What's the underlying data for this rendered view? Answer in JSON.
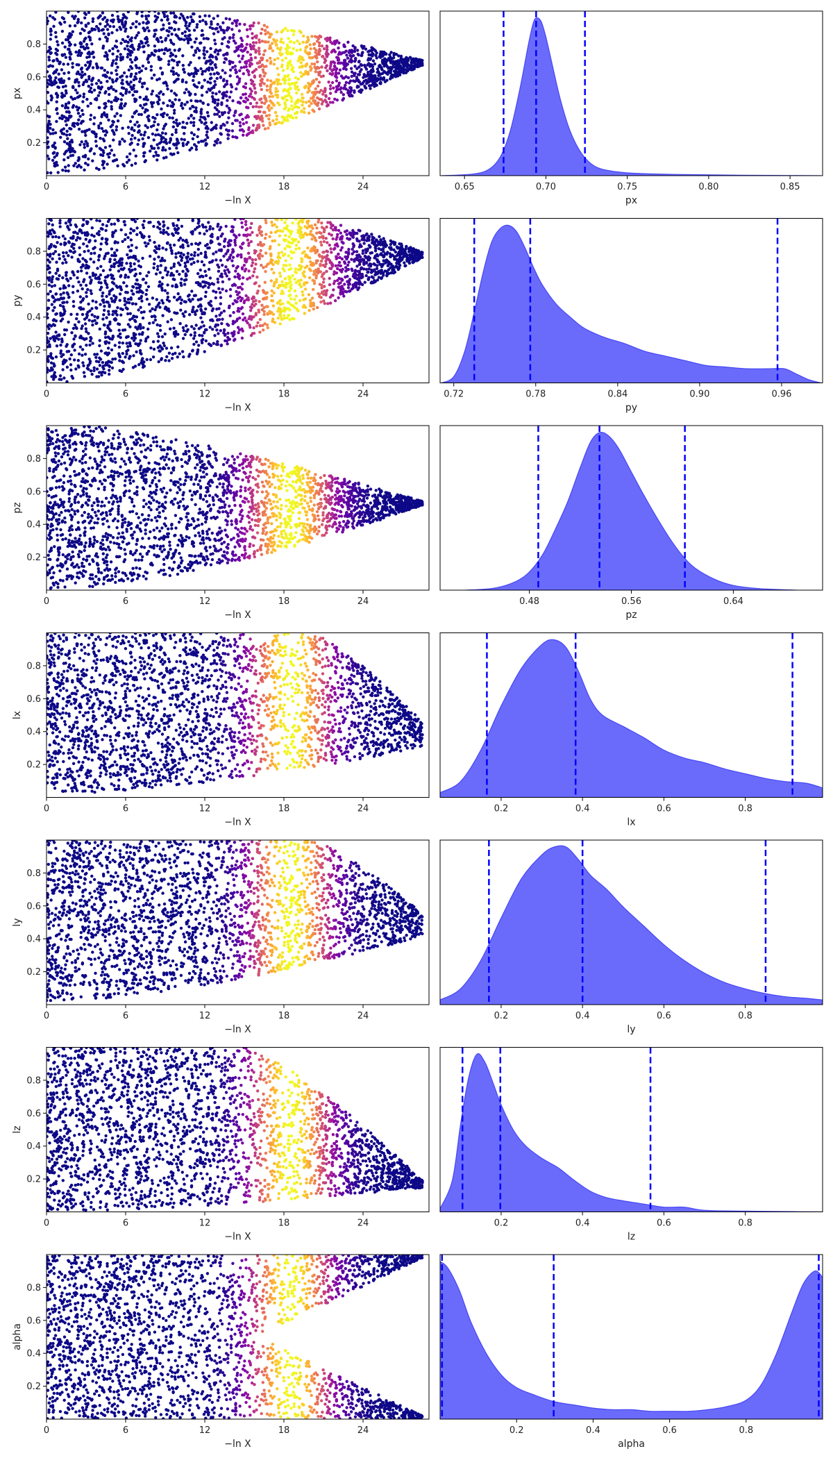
{
  "chart_data": [
    {
      "type": "scatter",
      "param": "px",
      "xlabel": "−ln X",
      "ylabel": "px",
      "xticks": [
        0,
        6,
        12,
        18,
        24
      ],
      "yticks": [
        0.2,
        0.4,
        0.6,
        0.8
      ],
      "xlim": [
        0,
        29
      ],
      "ylim": [
        0,
        1
      ],
      "funnel": {
        "lo_min": 0.0,
        "hi_max": 1.0,
        "converge_to": 0.69,
        "converge_lnx": 29,
        "lo_rise_lnx": 4,
        "hi_start_lnx": 10,
        "end_lnx": 28.5
      },
      "colormap_peak_lnx": 18.5,
      "colormap_width": 3.0
    },
    {
      "type": "area",
      "param": "px",
      "xlabel": "px",
      "xticks": [
        0.65,
        0.7,
        0.75,
        0.8,
        0.85
      ],
      "xtick_labels": [
        "0.65",
        "0.70",
        "0.75",
        "0.80",
        "0.85"
      ],
      "xlim": [
        0.635,
        0.87
      ],
      "quantiles": [
        0.674,
        0.694,
        0.724
      ],
      "density": {
        "x": [
          0.636,
          0.655,
          0.665,
          0.672,
          0.678,
          0.684,
          0.689,
          0.692,
          0.694,
          0.697,
          0.7,
          0.704,
          0.709,
          0.715,
          0.722,
          0.73,
          0.74,
          0.755,
          0.78,
          0.82,
          0.869
        ],
        "y": [
          0.0,
          0.01,
          0.04,
          0.12,
          0.28,
          0.55,
          0.82,
          0.96,
          1.0,
          0.98,
          0.88,
          0.7,
          0.48,
          0.28,
          0.14,
          0.06,
          0.03,
          0.015,
          0.008,
          0.003,
          0.0
        ]
      }
    },
    {
      "type": "scatter",
      "param": "py",
      "xlabel": "−ln X",
      "ylabel": "py",
      "xticks": [
        0,
        6,
        12,
        18,
        24
      ],
      "yticks": [
        0.2,
        0.4,
        0.6,
        0.8
      ],
      "xlim": [
        0,
        29
      ],
      "ylim": [
        0,
        1
      ],
      "funnel": {
        "lo_min": 0.0,
        "hi_max": 1.0,
        "converge_to": 0.78,
        "converge_lnx": 29,
        "lo_rise_lnx": 4,
        "hi_start_lnx": 20,
        "end_lnx": 28.5
      },
      "colormap_peak_lnx": 18.5,
      "colormap_width": 3.2
    },
    {
      "type": "area",
      "param": "py",
      "xlabel": "py",
      "xticks": [
        0.72,
        0.78,
        0.84,
        0.9,
        0.96
      ],
      "xtick_labels": [
        "0.72",
        "0.78",
        "0.84",
        "0.90",
        "0.96"
      ],
      "xlim": [
        0.71,
        0.99
      ],
      "quantiles": [
        0.735,
        0.776,
        0.957
      ],
      "density": {
        "x": [
          0.711,
          0.72,
          0.728,
          0.735,
          0.742,
          0.748,
          0.754,
          0.76,
          0.766,
          0.772,
          0.778,
          0.785,
          0.795,
          0.805,
          0.815,
          0.83,
          0.845,
          0.86,
          0.875,
          0.89,
          0.905,
          0.92,
          0.935,
          0.95,
          0.962,
          0.97,
          0.98,
          0.989
        ],
        "y": [
          0.0,
          0.04,
          0.2,
          0.45,
          0.72,
          0.9,
          0.98,
          1.0,
          0.96,
          0.86,
          0.74,
          0.62,
          0.5,
          0.42,
          0.35,
          0.29,
          0.25,
          0.2,
          0.17,
          0.14,
          0.11,
          0.1,
          0.09,
          0.09,
          0.09,
          0.06,
          0.02,
          0.0
        ]
      }
    },
    {
      "type": "scatter",
      "param": "pz",
      "xlabel": "−ln X",
      "ylabel": "pz",
      "xticks": [
        0,
        6,
        12,
        18,
        24
      ],
      "yticks": [
        0.2,
        0.4,
        0.6,
        0.8
      ],
      "xlim": [
        0,
        29
      ],
      "ylim": [
        0,
        1
      ],
      "funnel": {
        "lo_min": 0.0,
        "hi_max": 1.0,
        "converge_to": 0.53,
        "converge_lnx": 29,
        "lo_rise_lnx": 7,
        "hi_start_lnx": 3,
        "end_lnx": 28.5
      },
      "colormap_peak_lnx": 18.5,
      "colormap_width": 3.2
    },
    {
      "type": "area",
      "param": "pz",
      "xlabel": "pz",
      "xticks": [
        0.48,
        0.56,
        0.64
      ],
      "xtick_labels": [
        "0.48",
        "0.56",
        "0.64"
      ],
      "xlim": [
        0.41,
        0.71
      ],
      "quantiles": [
        0.487,
        0.535,
        0.602
      ],
      "density": {
        "x": [
          0.43,
          0.45,
          0.465,
          0.478,
          0.49,
          0.5,
          0.51,
          0.52,
          0.528,
          0.535,
          0.542,
          0.55,
          0.56,
          0.57,
          0.58,
          0.59,
          0.6,
          0.61,
          0.625,
          0.64,
          0.66,
          0.69
        ],
        "y": [
          0.0,
          0.01,
          0.04,
          0.1,
          0.22,
          0.38,
          0.56,
          0.78,
          0.94,
          1.0,
          0.98,
          0.9,
          0.75,
          0.6,
          0.46,
          0.33,
          0.22,
          0.14,
          0.07,
          0.03,
          0.01,
          0.0
        ]
      }
    },
    {
      "type": "scatter",
      "param": "lx",
      "xlabel": "−ln X",
      "ylabel": "lx",
      "xticks": [
        0,
        6,
        12,
        18,
        24
      ],
      "yticks": [
        0.2,
        0.4,
        0.6,
        0.8
      ],
      "xlim": [
        0,
        29
      ],
      "ylim": [
        0,
        1
      ],
      "funnel": {
        "lo_min": 0.02,
        "hi_max": 1.0,
        "converge_to": 0.33,
        "converge_lnx": 30,
        "lo_rise_lnx": 10,
        "hi_start_lnx": 20,
        "end_lnx": 28.5
      },
      "colormap_peak_lnx": 18.5,
      "colormap_width": 3.0
    },
    {
      "type": "area",
      "param": "lx",
      "xlabel": "lx",
      "xticks": [
        0.2,
        0.4,
        0.6,
        0.8
      ],
      "xtick_labels": [
        "0.2",
        "0.4",
        "0.6",
        "0.8"
      ],
      "xlim": [
        0.05,
        0.99
      ],
      "quantiles": [
        0.165,
        0.383,
        0.916
      ],
      "density": {
        "x": [
          0.05,
          0.1,
          0.15,
          0.2,
          0.25,
          0.3,
          0.33,
          0.36,
          0.39,
          0.42,
          0.45,
          0.5,
          0.55,
          0.6,
          0.65,
          0.7,
          0.75,
          0.8,
          0.85,
          0.9,
          0.95,
          0.99
        ],
        "y": [
          0.03,
          0.1,
          0.3,
          0.58,
          0.82,
          0.97,
          1.0,
          0.95,
          0.8,
          0.62,
          0.52,
          0.45,
          0.38,
          0.3,
          0.25,
          0.22,
          0.18,
          0.15,
          0.12,
          0.1,
          0.09,
          0.06
        ]
      }
    },
    {
      "type": "scatter",
      "param": "ly",
      "xlabel": "−ln X",
      "ylabel": "ly",
      "xticks": [
        0,
        6,
        12,
        18,
        24
      ],
      "yticks": [
        0.2,
        0.4,
        0.6,
        0.8
      ],
      "xlim": [
        0,
        29
      ],
      "ylim": [
        0,
        1
      ],
      "funnel": {
        "lo_min": 0.02,
        "hi_max": 1.0,
        "converge_to": 0.45,
        "converge_lnx": 30,
        "lo_rise_lnx": 10,
        "hi_start_lnx": 20,
        "end_lnx": 28.5
      },
      "colormap_peak_lnx": 18.5,
      "colormap_width": 3.0
    },
    {
      "type": "area",
      "param": "ly",
      "xlabel": "ly",
      "xticks": [
        0.2,
        0.4,
        0.6,
        0.8
      ],
      "xtick_labels": [
        "0.2",
        "0.4",
        "0.6",
        "0.8"
      ],
      "xlim": [
        0.05,
        0.99
      ],
      "quantiles": [
        0.17,
        0.4,
        0.85
      ],
      "density": {
        "x": [
          0.05,
          0.1,
          0.15,
          0.2,
          0.25,
          0.3,
          0.33,
          0.36,
          0.39,
          0.42,
          0.46,
          0.5,
          0.55,
          0.6,
          0.65,
          0.7,
          0.75,
          0.8,
          0.85,
          0.9,
          0.95,
          0.99
        ],
        "y": [
          0.03,
          0.1,
          0.28,
          0.55,
          0.8,
          0.95,
          1.0,
          1.0,
          0.92,
          0.82,
          0.73,
          0.62,
          0.5,
          0.38,
          0.28,
          0.2,
          0.14,
          0.1,
          0.07,
          0.05,
          0.04,
          0.03
        ]
      }
    },
    {
      "type": "scatter",
      "param": "lz",
      "xlabel": "−ln X",
      "ylabel": "lz",
      "xticks": [
        0,
        6,
        12,
        18,
        24
      ],
      "yticks": [
        0.2,
        0.4,
        0.6,
        0.8
      ],
      "xlim": [
        0,
        29
      ],
      "ylim": [
        0,
        1
      ],
      "funnel": {
        "lo_min": 0.0,
        "hi_max": 1.0,
        "converge_to": 0.15,
        "converge_lnx": 29,
        "lo_rise_lnx": 12,
        "hi_start_lnx": 15,
        "end_lnx": 28.5
      },
      "colormap_peak_lnx": 18.5,
      "colormap_width": 3.0
    },
    {
      "type": "area",
      "param": "lz",
      "xlabel": "lz",
      "xticks": [
        0.2,
        0.4,
        0.6,
        0.8
      ],
      "xtick_labels": [
        "0.2",
        "0.4",
        "0.6",
        "0.8"
      ],
      "xlim": [
        0.05,
        0.99
      ],
      "quantiles": [
        0.105,
        0.198,
        0.567
      ],
      "density": {
        "x": [
          0.05,
          0.08,
          0.1,
          0.12,
          0.14,
          0.16,
          0.18,
          0.2,
          0.23,
          0.26,
          0.3,
          0.34,
          0.38,
          0.42,
          0.46,
          0.5,
          0.55,
          0.6,
          0.65,
          0.7,
          0.8,
          0.9,
          0.99
        ],
        "y": [
          0.02,
          0.2,
          0.55,
          0.85,
          1.0,
          0.95,
          0.82,
          0.68,
          0.52,
          0.42,
          0.34,
          0.28,
          0.2,
          0.13,
          0.09,
          0.07,
          0.05,
          0.03,
          0.03,
          0.01,
          0.005,
          0.002,
          0.0
        ]
      }
    },
    {
      "type": "scatter",
      "param": "alpha",
      "xlabel": "−ln X",
      "ylabel": "alpha",
      "xticks": [
        0,
        6,
        12,
        18,
        24
      ],
      "yticks": [
        0.2,
        0.4,
        0.6,
        0.8
      ],
      "xlim": [
        0,
        29
      ],
      "ylim": [
        0,
        1
      ],
      "funnel": {
        "lo_min": 0.0,
        "hi_max": 1.0,
        "converge_to": 0.5,
        "converge_lnx": 99,
        "lo_rise_lnx": 0,
        "hi_start_lnx": 0,
        "end_lnx": 28.5,
        "split": true
      },
      "colormap_peak_lnx": 18.5,
      "colormap_width": 3.0
    },
    {
      "type": "area",
      "param": "alpha",
      "xlabel": "alpha",
      "xticks": [
        0.2,
        0.4,
        0.6,
        0.8
      ],
      "xtick_labels": [
        "0.2",
        "0.4",
        "0.6",
        "0.8"
      ],
      "xlim": [
        0.0,
        1.0
      ],
      "quantiles": [
        0.005,
        0.297,
        0.99
      ],
      "density": {
        "x": [
          0.0,
          0.02,
          0.05,
          0.08,
          0.12,
          0.16,
          0.2,
          0.25,
          0.3,
          0.35,
          0.4,
          0.45,
          0.5,
          0.55,
          0.6,
          0.65,
          0.7,
          0.75,
          0.8,
          0.84,
          0.88,
          0.92,
          0.95,
          0.98,
          1.0
        ],
        "y": [
          1.0,
          0.96,
          0.82,
          0.62,
          0.42,
          0.28,
          0.2,
          0.15,
          0.11,
          0.09,
          0.07,
          0.06,
          0.06,
          0.05,
          0.05,
          0.05,
          0.06,
          0.08,
          0.12,
          0.22,
          0.42,
          0.68,
          0.86,
          0.94,
          0.9
        ]
      }
    }
  ]
}
